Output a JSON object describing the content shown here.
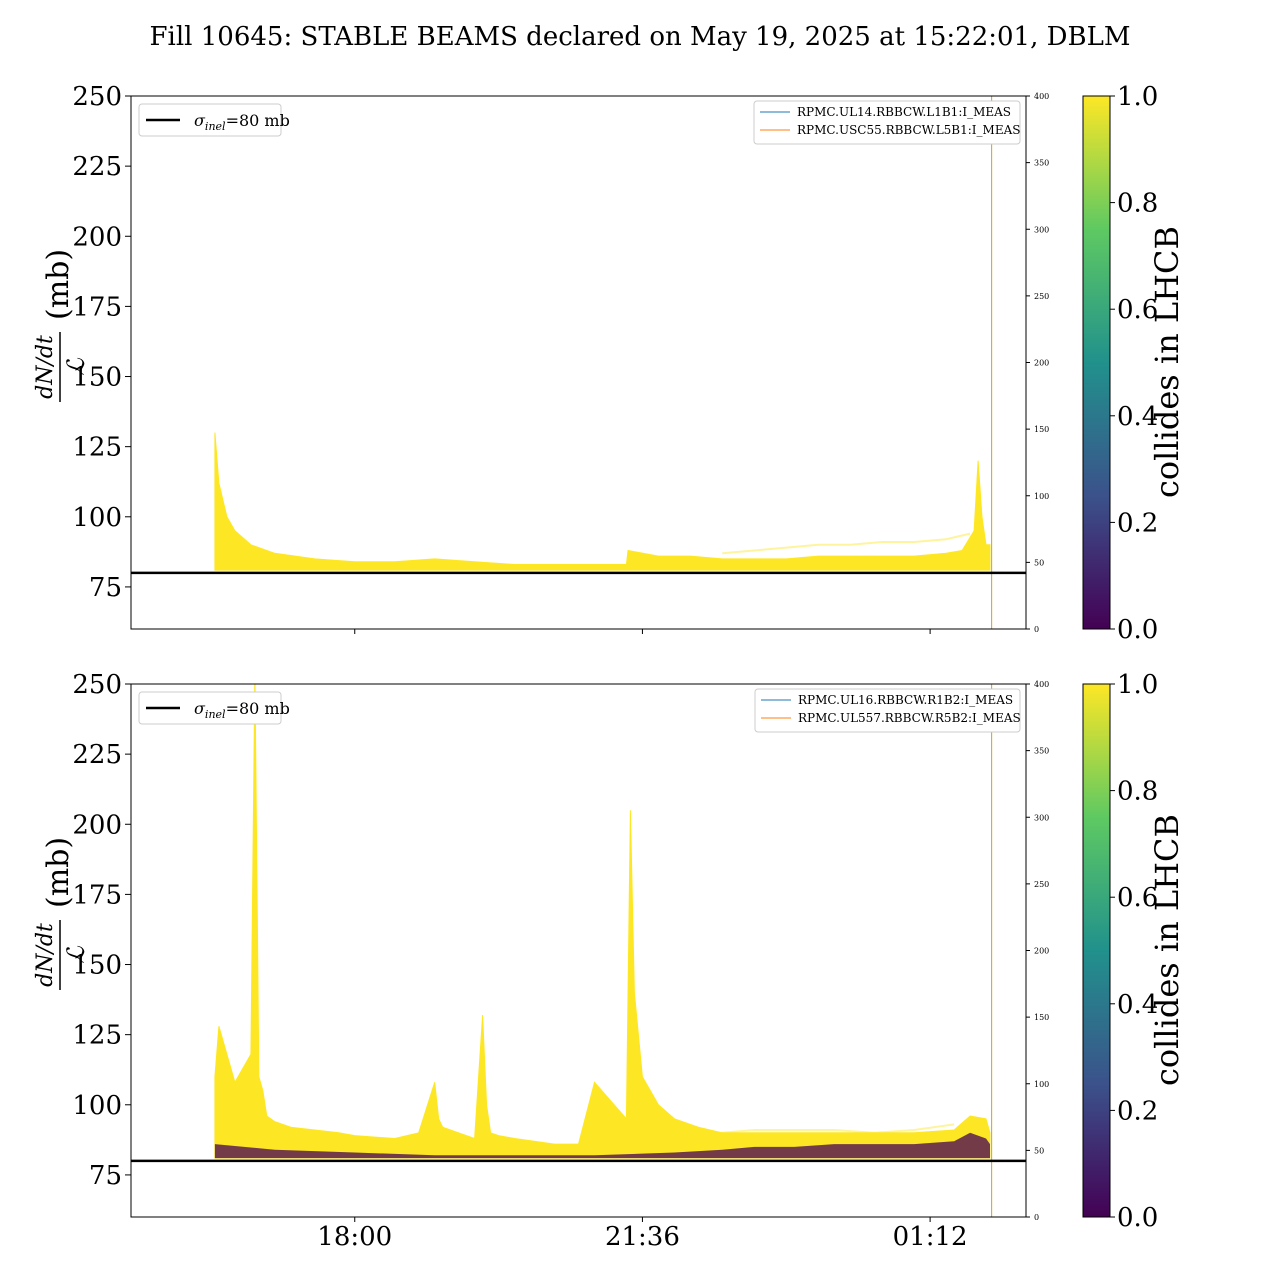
{
  "figure": {
    "title": "Fill 10645: STABLE BEAMS declared on May 19, 2025 at 15:22:01, DBLM",
    "colors": {
      "reference_line": "#000000",
      "series_blue": "#1f77b4",
      "series_orange": "#ff7f0e",
      "colormap": [
        "#440154",
        "#3b528b",
        "#21918c",
        "#5ec962",
        "#fde725"
      ]
    }
  },
  "chart_data": [
    {
      "type": "area",
      "panel": "top",
      "ylabel_numerator": "dN/dt",
      "ylabel_denominator": "ℒ",
      "ylabel_unit": "(mb)",
      "ylim": [
        60,
        250
      ],
      "yticks": [
        75,
        100,
        125,
        150,
        175,
        200,
        225,
        250
      ],
      "y2lim": [
        0,
        400
      ],
      "y2ticks": [
        0,
        50,
        100,
        150,
        200,
        250,
        300,
        350,
        400
      ],
      "xticks": [],
      "reference_line": {
        "value": 80,
        "label": "σinel=80 mb",
        "sigma": "σ",
        "sub": "inel",
        "rest": "=80 mb",
        "legend_position": "top-left"
      },
      "legend_position": "top-right",
      "colorbar": {
        "label": "collides in LHCB",
        "ticks": [
          "0.0",
          "0.2",
          "0.4",
          "0.6",
          "0.8",
          "1.0"
        ],
        "range": [
          0,
          1
        ]
      },
      "series": [
        {
          "name": "RPMC.UL14.RBBCW.L1B1:I_MEAS",
          "color": "#1f77b4",
          "values_right_axis": [
            0,
            0
          ]
        },
        {
          "name": "RPMC.USC55.RBBCW.L5B1:I_MEAS",
          "color": "#ff7f0e",
          "values_right_axis": [
            0,
            0
          ]
        }
      ],
      "envelope": {
        "x_hours": [
          15.0,
          16.2,
          16.25,
          16.3,
          16.4,
          16.5,
          16.7,
          17.0,
          17.5,
          18.0,
          18.5,
          19.0,
          19.5,
          20.0,
          20.5,
          21.0,
          21.4,
          21.42,
          21.8,
          22.2,
          22.6,
          23.0,
          23.4,
          23.8,
          0.2,
          0.6,
          1.0,
          1.4,
          1.6,
          1.75,
          1.8,
          1.85,
          1.9,
          1.95,
          2.1
        ],
        "top": [
          null,
          null,
          130,
          112,
          100,
          95,
          90,
          87,
          85,
          84,
          84,
          85,
          84,
          83,
          83,
          83,
          83,
          88,
          86,
          86,
          85,
          85,
          85,
          86,
          86,
          86,
          86,
          87,
          88,
          95,
          120,
          100,
          90,
          90,
          null
        ],
        "bottom": [
          null,
          null,
          81,
          81,
          81,
          81,
          81,
          81,
          81,
          81,
          81,
          81,
          81,
          81,
          81,
          81,
          81,
          81,
          81,
          81,
          81,
          81,
          81,
          81,
          81,
          81,
          81,
          81,
          81,
          81,
          81,
          81,
          81,
          81,
          null
        ]
      },
      "faint_trace": {
        "x_hours": [
          22.6,
          23.0,
          23.4,
          23.8,
          0.2,
          0.6,
          1.0,
          1.4,
          1.7
        ],
        "values": [
          87,
          88,
          89,
          90,
          90,
          91,
          91,
          92,
          94
        ]
      },
      "end_marker_hour": 1.97
    },
    {
      "type": "area",
      "panel": "bottom",
      "ylabel_numerator": "dN/dt",
      "ylabel_denominator": "ℒ",
      "ylabel_unit": "(mb)",
      "ylim": [
        60,
        250
      ],
      "yticks": [
        75,
        100,
        125,
        150,
        175,
        200,
        225,
        250
      ],
      "y2lim": [
        0,
        400
      ],
      "y2ticks": [
        0,
        50,
        100,
        150,
        200,
        250,
        300,
        350,
        400
      ],
      "xticks": [
        "18:00",
        "21:36",
        "01:12"
      ],
      "xtick_hours": [
        18.0,
        21.6,
        25.2
      ],
      "reference_line": {
        "value": 80,
        "label": "σinel=80 mb",
        "sigma": "σ",
        "sub": "inel",
        "rest": "=80 mb",
        "legend_position": "top-left"
      },
      "legend_position": "top-right",
      "colorbar": {
        "label": "collides in LHCB",
        "ticks": [
          "0.0",
          "0.2",
          "0.4",
          "0.6",
          "0.8",
          "1.0"
        ],
        "range": [
          0,
          1
        ]
      },
      "series": [
        {
          "name": "RPMC.UL16.RBBCW.R1B2:I_MEAS",
          "color": "#1f77b4",
          "values_right_axis": [
            0,
            0
          ]
        },
        {
          "name": "RPMC.UL557.RBBCW.R5B2:I_MEAS",
          "color": "#ff7f0e",
          "values_right_axis": [
            0,
            0
          ]
        }
      ],
      "envelope": {
        "x_hours": [
          15.0,
          16.2,
          16.25,
          16.3,
          16.5,
          16.7,
          16.75,
          16.8,
          16.85,
          16.9,
          17.0,
          17.2,
          17.5,
          17.8,
          18.0,
          18.5,
          18.8,
          19.0,
          19.05,
          19.1,
          19.3,
          19.5,
          19.6,
          19.65,
          19.7,
          19.8,
          20.0,
          20.5,
          20.8,
          21.0,
          21.4,
          21.45,
          21.5,
          21.6,
          21.8,
          22.0,
          22.3,
          22.6,
          23.0,
          23.5,
          0.0,
          0.5,
          1.0,
          1.5,
          1.7,
          1.9,
          1.95,
          2.1
        ],
        "top": [
          null,
          null,
          110,
          128,
          108,
          118,
          255,
          110,
          105,
          96,
          94,
          92,
          91,
          90,
          89,
          88,
          90,
          108,
          95,
          92,
          90,
          88,
          132,
          100,
          90,
          89,
          88,
          86,
          86,
          108,
          95,
          205,
          140,
          110,
          100,
          95,
          92,
          90,
          90,
          90,
          90,
          90,
          90,
          91,
          96,
          95,
          90,
          null
        ],
        "bottom": [
          null,
          null,
          81,
          81,
          81,
          81,
          81,
          81,
          81,
          81,
          81,
          81,
          81,
          81,
          81,
          81,
          81,
          81,
          81,
          81,
          81,
          81,
          81,
          81,
          81,
          81,
          81,
          81,
          81,
          81,
          81,
          81,
          81,
          81,
          81,
          81,
          81,
          81,
          81,
          81,
          81,
          81,
          81,
          81,
          81,
          81,
          81,
          null
        ]
      },
      "dark_band": {
        "x_hours": [
          16.25,
          17.0,
          18.0,
          19.0,
          20.0,
          21.0,
          22.0,
          22.6,
          23.0,
          23.5,
          0.0,
          0.5,
          1.0,
          1.5,
          1.7,
          1.9,
          1.95
        ],
        "values": [
          86,
          84,
          83,
          82,
          82,
          82,
          83,
          84,
          85,
          85,
          86,
          86,
          86,
          87,
          90,
          88,
          86
        ]
      },
      "faint_trace": {
        "x_hours": [
          22.3,
          22.6,
          23.0,
          23.5,
          0.0,
          0.5,
          1.0,
          1.5
        ],
        "values": [
          89,
          90,
          91,
          91,
          91,
          90,
          91,
          93
        ]
      },
      "end_marker_hour": 1.97
    }
  ]
}
